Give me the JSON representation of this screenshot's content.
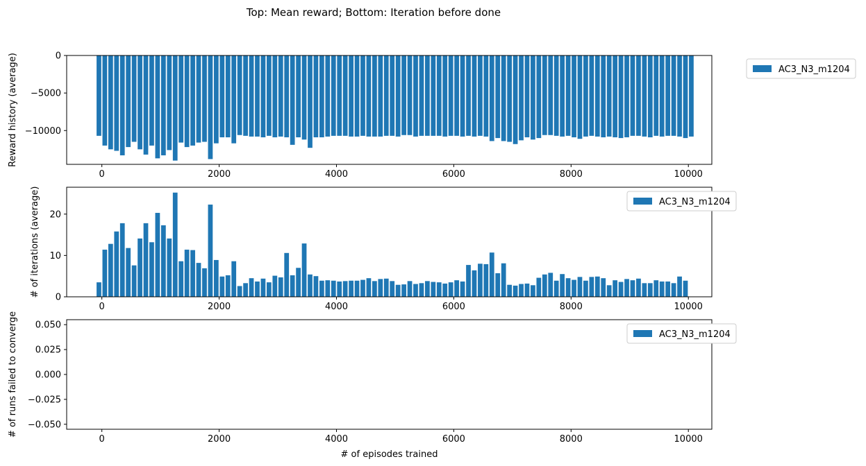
{
  "title": "Top: Mean reward; Bottom: Iteration before done",
  "colors": {
    "bar": "#1f77b4",
    "axis": "#000000",
    "legend_border": "#cccccc"
  },
  "chart_data": [
    {
      "type": "bar",
      "xlabel": "",
      "ylabel": "Reward history (average)",
      "legend": {
        "entries": [
          "AC3_N3_m1204"
        ],
        "placement": "outside-right"
      },
      "grid": false,
      "xlim": [
        -600,
        10400
      ],
      "ylim": [
        -14500,
        0
      ],
      "xticks": [
        0,
        2000,
        4000,
        6000,
        8000,
        10000
      ],
      "xtick_labels": [
        "0",
        "2000",
        "4000",
        "6000",
        "8000",
        "10000"
      ],
      "yticks": [
        0,
        -5000,
        -10000
      ],
      "ytick_labels": [
        "0",
        "−5000",
        "−10000"
      ],
      "series": [
        {
          "name": "AC3_N3_m1204",
          "x_start": -50,
          "x_step": 100,
          "values": [
            -10700,
            -12000,
            -12500,
            -12700,
            -13300,
            -12200,
            -11500,
            -12500,
            -13200,
            -12000,
            -13700,
            -13300,
            -12600,
            -14000,
            -11600,
            -12200,
            -12000,
            -11600,
            -11500,
            -13800,
            -11700,
            -10900,
            -10900,
            -11700,
            -10600,
            -10700,
            -10800,
            -10800,
            -10900,
            -10700,
            -10900,
            -10800,
            -10900,
            -11900,
            -10900,
            -11200,
            -12300,
            -10900,
            -10900,
            -10800,
            -10700,
            -10700,
            -10700,
            -10800,
            -10800,
            -10700,
            -10800,
            -10800,
            -10800,
            -10700,
            -10700,
            -10800,
            -10600,
            -10600,
            -10800,
            -10700,
            -10700,
            -10700,
            -10700,
            -10800,
            -10700,
            -10700,
            -10800,
            -10700,
            -10800,
            -10700,
            -10800,
            -11400,
            -11000,
            -11400,
            -11500,
            -11800,
            -11300,
            -10900,
            -11200,
            -11000,
            -10600,
            -10600,
            -10700,
            -10800,
            -10700,
            -10900,
            -11100,
            -10800,
            -10700,
            -10800,
            -10900,
            -10800,
            -10900,
            -11000,
            -10900,
            -10700,
            -10700,
            -10800,
            -10900,
            -10700,
            -10800,
            -10700,
            -10700,
            -10800,
            -11000,
            -10800
          ]
        }
      ]
    },
    {
      "type": "bar",
      "xlabel": "",
      "ylabel": "# of iterations (average)",
      "legend": {
        "entries": [
          "AC3_N3_m1204"
        ],
        "placement": "upper-right"
      },
      "grid": false,
      "xlim": [
        -600,
        10400
      ],
      "ylim": [
        0,
        26.5
      ],
      "xticks": [
        0,
        2000,
        4000,
        6000,
        8000,
        10000
      ],
      "xtick_labels": [
        "0",
        "2000",
        "4000",
        "6000",
        "8000",
        "10000"
      ],
      "yticks": [
        0,
        10,
        20
      ],
      "ytick_labels": [
        "0",
        "10",
        "20"
      ],
      "series": [
        {
          "name": "AC3_N3_m1204",
          "x_start": -50,
          "x_step": 100,
          "values": [
            3.5,
            11.4,
            12.8,
            15.8,
            17.8,
            11.8,
            7.6,
            14.1,
            17.8,
            13.2,
            20.3,
            17.3,
            14.1,
            25.2,
            8.6,
            11.4,
            11.3,
            8.2,
            6.9,
            22.3,
            8.9,
            4.9,
            5.2,
            8.6,
            2.6,
            3.3,
            4.5,
            3.7,
            4.4,
            3.5,
            5.1,
            4.7,
            10.6,
            5.2,
            7.0,
            12.9,
            5.4,
            5.0,
            3.9,
            4.0,
            3.9,
            3.7,
            3.8,
            3.9,
            3.9,
            4.1,
            4.5,
            3.8,
            4.3,
            4.4,
            3.8,
            2.9,
            3.0,
            3.8,
            3.1,
            3.3,
            3.8,
            3.6,
            3.5,
            3.2,
            3.5,
            4.0,
            3.7,
            7.7,
            6.4,
            8.0,
            7.9,
            10.7,
            5.7,
            8.1,
            2.9,
            2.7,
            3.1,
            3.2,
            2.8,
            4.6,
            5.4,
            5.8,
            3.9,
            5.5,
            4.5,
            4.1,
            4.8,
            3.9,
            4.8,
            4.9,
            4.5,
            2.8,
            4.0,
            3.6,
            4.3,
            4.0,
            4.4,
            3.3,
            3.3,
            4.0,
            3.7,
            3.7,
            3.3,
            4.9,
            3.9
          ]
        }
      ]
    },
    {
      "type": "bar",
      "xlabel": "# of episodes trained",
      "ylabel": "# of runs failed to converge",
      "legend": {
        "entries": [
          "AC3_N3_m1204"
        ],
        "placement": "upper-right"
      },
      "grid": false,
      "xlim": [
        -600,
        10400
      ],
      "ylim": [
        -0.055,
        0.055
      ],
      "xticks": [
        0,
        2000,
        4000,
        6000,
        8000,
        10000
      ],
      "xtick_labels": [
        "0",
        "2000",
        "4000",
        "6000",
        "8000",
        "10000"
      ],
      "yticks": [
        0.05,
        0.025,
        0.0,
        -0.025,
        -0.05
      ],
      "ytick_labels": [
        "0.050",
        "0.025",
        "0.000",
        "−0.025",
        "−0.050"
      ],
      "series": [
        {
          "name": "AC3_N3_m1204",
          "x_start": -50,
          "x_step": 100,
          "values": []
        }
      ]
    }
  ]
}
